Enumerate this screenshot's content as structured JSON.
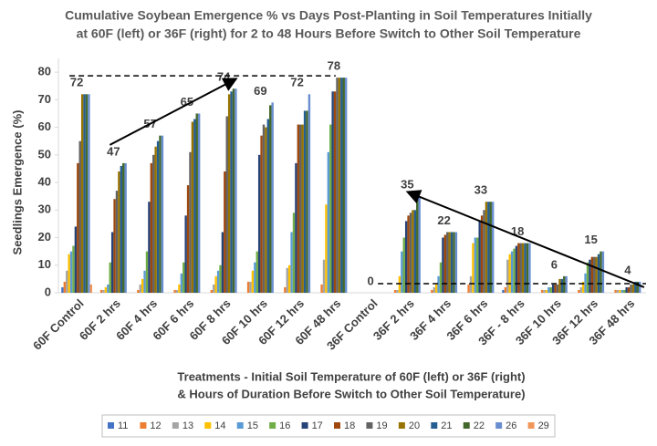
{
  "chart_data": {
    "type": "bar",
    "title_lines": [
      "Cumulative Soybean Emergence % vs Days Post-Planting in Soil Temperatures Initially",
      "at 60F (left) or 36F (right) for 2 to 48 Hours Before Switch to Other Soil Temperature"
    ],
    "y_label": "Seedlings Emergence (%)",
    "x_label_lines": [
      "Treatments - Initial Soil Temperature of 60F (left) or 36F (right)",
      "& Hours of Duration Before Switch to Other Soil Temperature)"
    ],
    "categories": [
      "60F Control",
      "60F 2 hrs",
      "60F 4 hrs",
      "60F 6 hrs",
      "60F 8 hrs",
      "60F 10 hrs",
      "60F 12 hrs",
      "60F 48 hrs",
      "36F Control",
      "36F 2 hrs",
      "36F 4 hrs",
      "36F 6 hrs",
      "36F - 8 hrs",
      "36F 10 hrs",
      "36F 12 hrs",
      "36F 48 hrs"
    ],
    "ylim": [
      0,
      85
    ],
    "yticks": [
      0,
      10,
      20,
      30,
      40,
      50,
      60,
      70,
      80
    ],
    "legend": "bottom",
    "series": [
      {
        "name": "11",
        "color": "#4472c4",
        "values": [
          2,
          0,
          0,
          0,
          0,
          0,
          0,
          0,
          0,
          0,
          0,
          0,
          1,
          0,
          0,
          0
        ]
      },
      {
        "name": "12",
        "color": "#ed7d31",
        "values": [
          4,
          1,
          1,
          1,
          1,
          4,
          2,
          3,
          0,
          1,
          1,
          3,
          2,
          1,
          1,
          1
        ]
      },
      {
        "name": "13",
        "color": "#a5a5a5",
        "values": [
          8,
          1,
          3,
          1,
          3,
          4,
          9,
          12,
          0,
          1,
          2,
          6,
          12,
          1,
          2,
          1
        ]
      },
      {
        "name": "14",
        "color": "#ffc000",
        "values": [
          14,
          2,
          5,
          3,
          6,
          8,
          10,
          32,
          0,
          6,
          3,
          18,
          14,
          1,
          4,
          1
        ]
      },
      {
        "name": "15",
        "color": "#5b9bd5",
        "values": [
          15,
          3,
          8,
          7,
          8,
          11,
          22,
          51,
          0,
          15,
          6,
          20,
          15,
          2,
          7,
          1
        ]
      },
      {
        "name": "16",
        "color": "#70ad47",
        "values": [
          17,
          11,
          15,
          11,
          10,
          15,
          29,
          61,
          0,
          20,
          11,
          20,
          16,
          2,
          11,
          1
        ]
      },
      {
        "name": "17",
        "color": "#264478",
        "values": [
          24,
          22,
          33,
          28,
          22,
          50,
          47,
          73,
          0,
          26,
          20,
          26,
          17,
          3,
          12,
          2
        ]
      },
      {
        "name": "18",
        "color": "#9e480e",
        "values": [
          47,
          34,
          47,
          39,
          44,
          57,
          61,
          73,
          0,
          28,
          21,
          28,
          18,
          3,
          13,
          2
        ]
      },
      {
        "name": "19",
        "color": "#636363",
        "values": [
          55,
          37,
          50,
          51,
          64,
          61,
          61,
          78,
          0,
          29,
          22,
          30,
          18,
          3,
          13,
          3
        ]
      },
      {
        "name": "20",
        "color": "#997300",
        "values": [
          72,
          44,
          53,
          62,
          72,
          60,
          61,
          78,
          0,
          30,
          22,
          33,
          18,
          5,
          13,
          3
        ]
      },
      {
        "name": "21",
        "color": "#255e91",
        "values": [
          72,
          46,
          55,
          63,
          73,
          63,
          66,
          78,
          0,
          30,
          22,
          33,
          18,
          5,
          14,
          4
        ]
      },
      {
        "name": "22",
        "color": "#43682b",
        "values": [
          72,
          47,
          57,
          65,
          74,
          68,
          66,
          78,
          0,
          34,
          22,
          33,
          18,
          6,
          15,
          4
        ]
      },
      {
        "name": "26",
        "color": "#698ed0",
        "values": [
          72,
          47,
          57,
          65,
          74,
          69,
          72,
          78,
          0,
          35,
          22,
          33,
          18,
          6,
          15,
          4
        ],
        "value_labels": [
          "72",
          "47",
          "57",
          "65",
          "74",
          "69",
          "72",
          "78",
          "0",
          "35",
          "22",
          "33",
          "18",
          "6",
          "15",
          "4"
        ]
      },
      {
        "name": "29",
        "color": "#f1975a",
        "values": [
          3,
          0,
          0,
          0,
          0,
          0,
          0,
          0,
          0,
          0,
          0,
          0,
          0,
          0,
          0,
          0
        ]
      }
    ]
  }
}
